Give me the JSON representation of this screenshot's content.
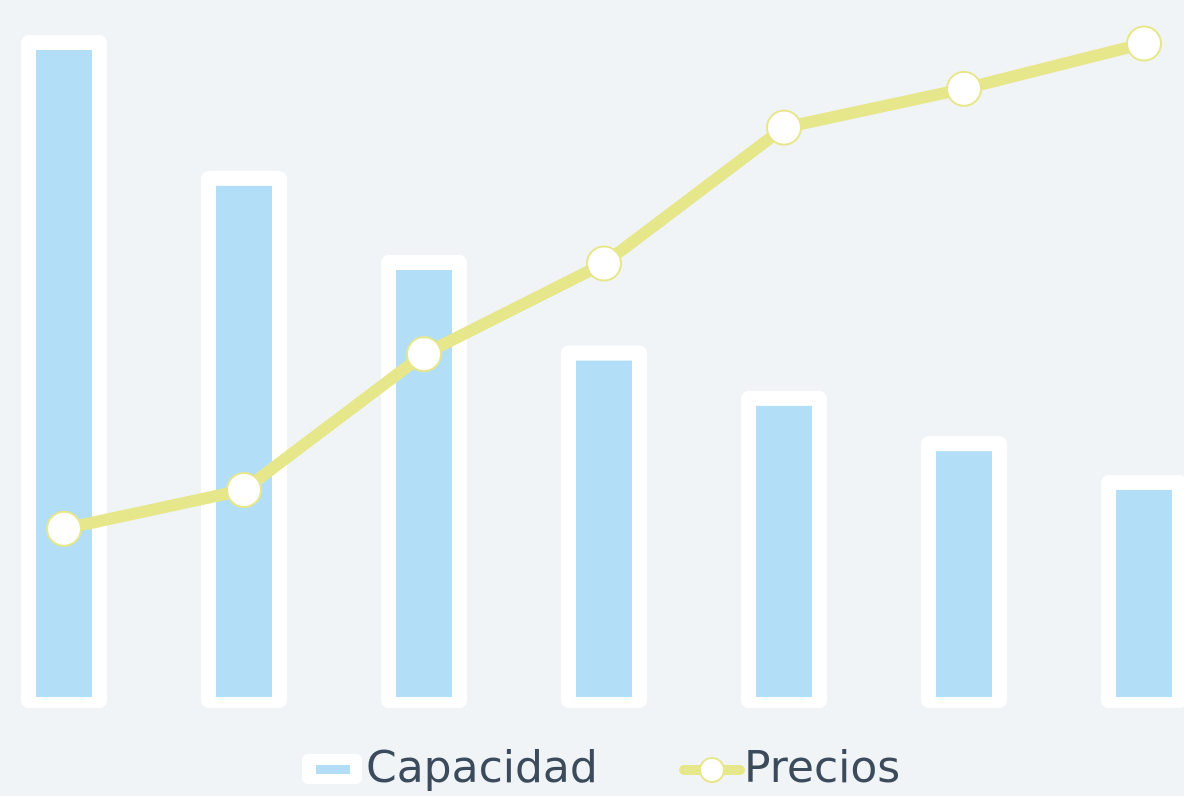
{
  "chart_data": {
    "type": "bar-line",
    "categories": [
      null,
      null,
      null,
      null,
      null,
      null,
      null
    ],
    "series": [
      {
        "name": "Capacidad",
        "type": "bar",
        "color": "#b3def7",
        "values": [
          100,
          79,
          66,
          52,
          45,
          38,
          32
        ]
      },
      {
        "name": "Precios",
        "type": "line",
        "color": "#e6e68a",
        "values": [
          26,
          32,
          53,
          67,
          88,
          94,
          101
        ]
      }
    ],
    "ylim": [
      0,
      100
    ],
    "legend": "bottom"
  }
}
